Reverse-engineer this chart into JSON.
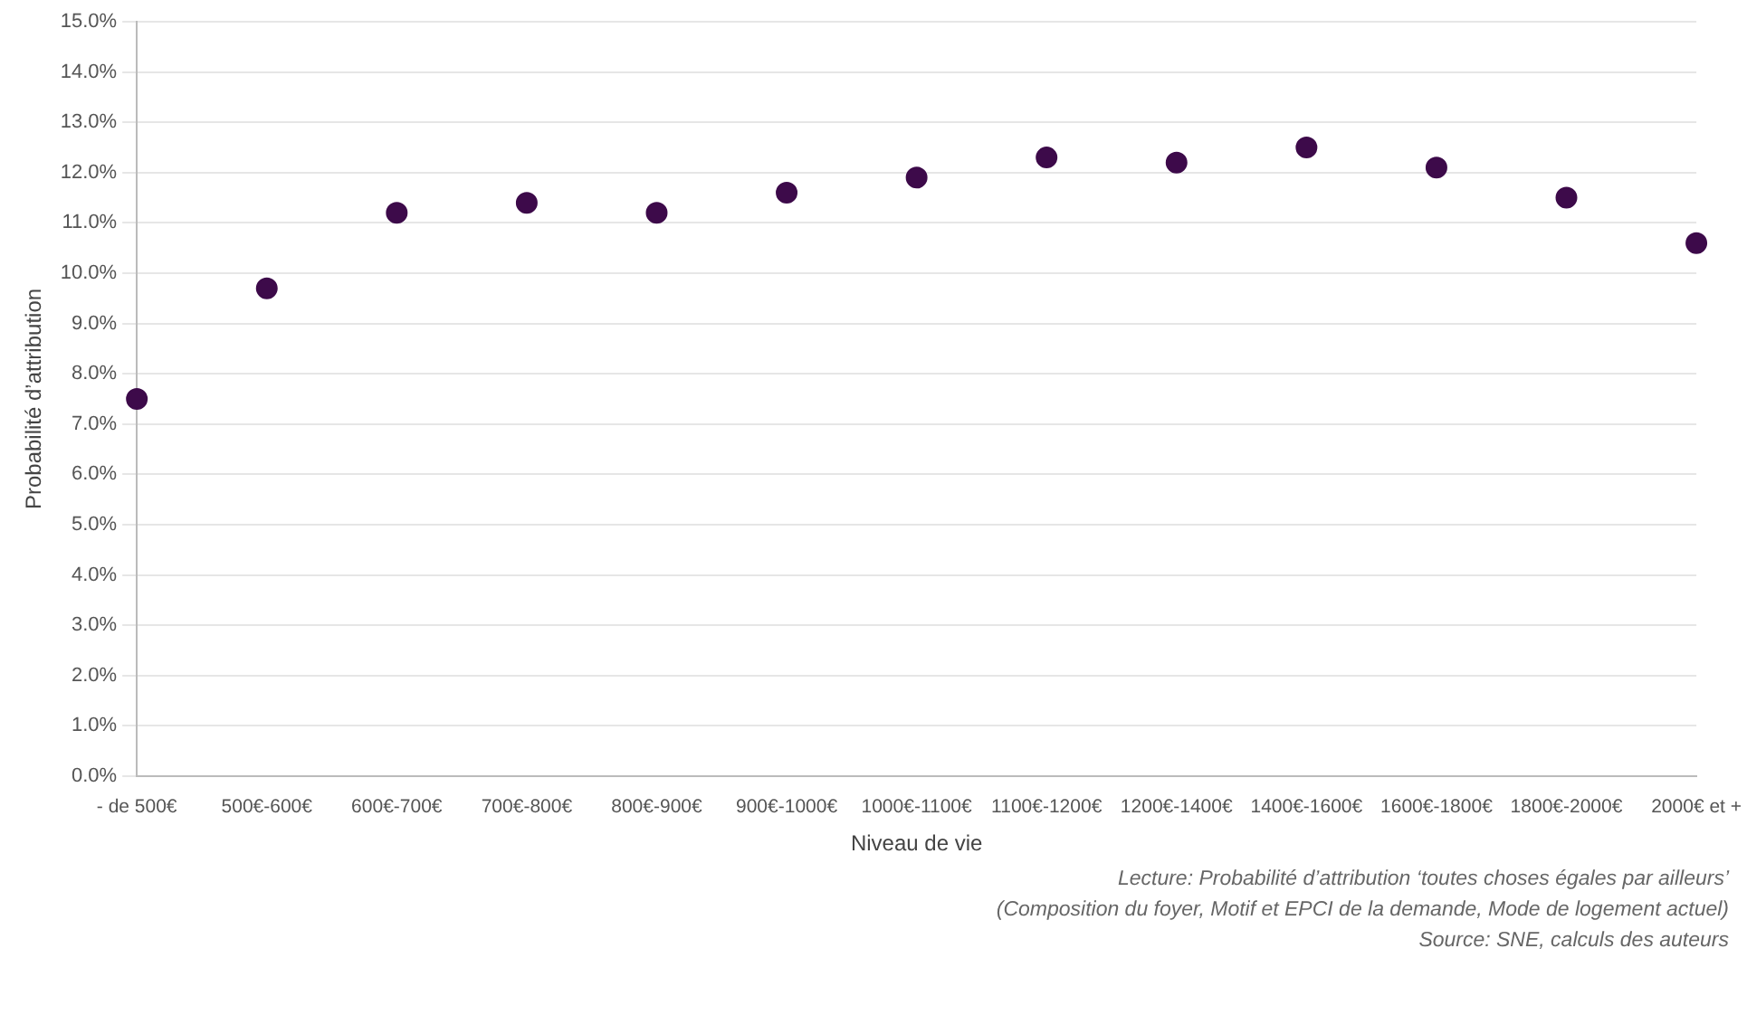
{
  "chart_data": {
    "type": "scatter",
    "xlabel": "Niveau de vie",
    "ylabel": "Probabilité d’attribution",
    "categories": [
      "- de 500€",
      "500€-600€",
      "600€-700€",
      "700€-800€",
      "800€-900€",
      "900€-1000€",
      "1000€-1100€",
      "1100€-1200€",
      "1200€-1400€",
      "1400€-1600€",
      "1600€-1800€",
      "1800€-2000€",
      "2000€ et +"
    ],
    "values": [
      7.5,
      9.7,
      11.2,
      11.4,
      11.2,
      11.6,
      11.9,
      12.3,
      12.2,
      12.5,
      12.1,
      11.5,
      10.6
    ],
    "color": "#3d0a4a",
    "marker": "circle",
    "ylim": [
      0,
      15
    ],
    "yticks": [
      {
        "value": 0,
        "label": "0.0%"
      },
      {
        "value": 1,
        "label": "1.0%"
      },
      {
        "value": 2,
        "label": "2.0%"
      },
      {
        "value": 3,
        "label": "3.0%"
      },
      {
        "value": 4,
        "label": "4.0%"
      },
      {
        "value": 5,
        "label": "5.0%"
      },
      {
        "value": 6,
        "label": "6.0%"
      },
      {
        "value": 7,
        "label": "7.0%"
      },
      {
        "value": 8,
        "label": "8.0%"
      },
      {
        "value": 9,
        "label": "9.0%"
      },
      {
        "value": 10,
        "label": "10.0%"
      },
      {
        "value": 11,
        "label": "11.0%"
      },
      {
        "value": 12,
        "label": "12.0%"
      },
      {
        "value": 13,
        "label": "13.0%"
      },
      {
        "value": 14,
        "label": "14.0%"
      },
      {
        "value": 15,
        "label": "15.0%"
      }
    ],
    "grid": "y",
    "annotations": [
      "Lecture: Probabilité d’attribution ‘toutes choses égales par ailleurs’",
      "(Composition du foyer, Motif et EPCI de la demande, Mode de logement actuel)",
      "Source: SNE, calculs des auteurs"
    ]
  }
}
